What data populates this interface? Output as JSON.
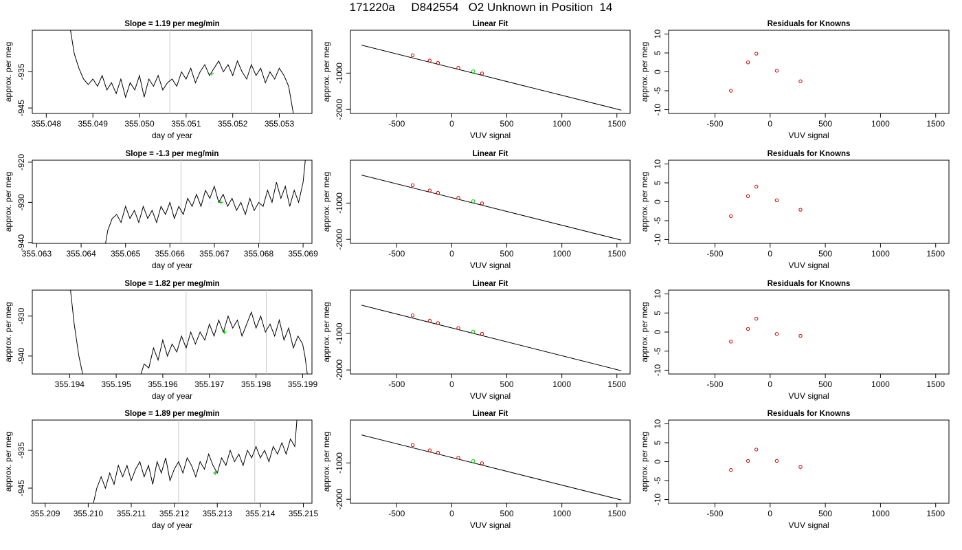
{
  "title": "171220a     D842554   O2 Unknown in Position  14",
  "colors": {
    "line": "#000000",
    "known_points": "#cc0000",
    "unknown_point": "#00cc00",
    "vertical_markers": "#c8c8c8"
  },
  "chart_data": [
    {
      "row": 1,
      "type": "line",
      "title": "Slope =  1.19  per meg/min",
      "xlabel": "day of year",
      "ylabel": "approx. per meg",
      "xlim": [
        355.0477,
        355.0537
      ],
      "ylim": [
        -946.5,
        -923.5
      ],
      "xticks": [
        "355.048",
        "355.049",
        "355.050",
        "355.051",
        "355.052",
        "355.053"
      ],
      "yticks": [
        "-935",
        "-945"
      ],
      "vlines": [
        355.05065,
        355.0524
      ],
      "marker": [
        355.05155,
        -935.5
      ],
      "trace": [
        [
          355.04852,
          -923.5
        ],
        [
          355.0486,
          -930
        ],
        [
          355.0487,
          -934
        ],
        [
          355.0488,
          -937
        ],
        [
          355.0489,
          -938.5
        ],
        [
          355.049,
          -937
        ],
        [
          355.0491,
          -939
        ],
        [
          355.0492,
          -936
        ],
        [
          355.0493,
          -940
        ],
        [
          355.0494,
          -938
        ],
        [
          355.0495,
          -941
        ],
        [
          355.0496,
          -937
        ],
        [
          355.0497,
          -942
        ],
        [
          355.0498,
          -938
        ],
        [
          355.0499,
          -940
        ],
        [
          355.05,
          -936
        ],
        [
          355.0501,
          -942
        ],
        [
          355.0502,
          -937
        ],
        [
          355.0503,
          -939
        ],
        [
          355.0504,
          -936
        ],
        [
          355.0505,
          -940
        ],
        [
          355.0506,
          -938
        ],
        [
          355.0507,
          -937
        ],
        [
          355.0508,
          -939
        ],
        [
          355.0509,
          -935
        ],
        [
          355.051,
          -937
        ],
        [
          355.0511,
          -934
        ],
        [
          355.0512,
          -938
        ],
        [
          355.0513,
          -935
        ],
        [
          355.0514,
          -933
        ],
        [
          355.0515,
          -936
        ],
        [
          355.0516,
          -934
        ],
        [
          355.0517,
          -932
        ],
        [
          355.0518,
          -935
        ],
        [
          355.0519,
          -933
        ],
        [
          355.052,
          -936
        ],
        [
          355.0521,
          -932
        ],
        [
          355.0522,
          -935
        ],
        [
          355.0523,
          -937
        ],
        [
          355.0524,
          -933
        ],
        [
          355.0525,
          -936
        ],
        [
          355.0526,
          -934
        ],
        [
          355.0527,
          -938
        ],
        [
          355.0528,
          -935
        ],
        [
          355.0529,
          -937
        ],
        [
          355.053,
          -934
        ],
        [
          355.0531,
          -936
        ],
        [
          355.0532,
          -939
        ],
        [
          355.0533,
          -946.5
        ]
      ]
    },
    {
      "row": 1,
      "type": "line",
      "title": "Linear Fit",
      "xlabel": "VUV signal",
      "ylabel": "approx. per meg",
      "xlim": [
        -920,
        1620
      ],
      "ylim": [
        -2110,
        180
      ],
      "xticks": [
        "-500",
        "0",
        "500",
        "1000",
        "1500"
      ],
      "yticks": [
        "-1000",
        "-2000"
      ],
      "fit": {
        "x": [
          -820,
          1540
        ],
        "y": [
          -230,
          -2020
        ]
      },
      "knowns": {
        "x": [
          -355,
          -200,
          -125,
          60,
          275
        ],
        "y": [
          -510,
          -655,
          -720,
          -855,
          -1010
        ]
      },
      "unknown": {
        "x": [
          195
        ],
        "y": [
          -950
        ]
      }
    },
    {
      "row": 1,
      "type": "scatter",
      "title": "Residuals for Knowns",
      "xlabel": "VUV signal",
      "ylabel": "approx. per meg",
      "xlim": [
        -920,
        1620
      ],
      "ylim": [
        -11,
        11
      ],
      "xticks": [
        "-500",
        "0",
        "500",
        "1000",
        "1500"
      ],
      "yticks": [
        "10",
        "5",
        "0",
        "-5",
        "-10"
      ],
      "x": [
        -355,
        -200,
        -125,
        60,
        275
      ],
      "y": [
        -5,
        2.5,
        4.8,
        0.3,
        -2.5
      ]
    },
    {
      "row": 2,
      "type": "line",
      "title": "Slope =  -1.3  per meg/min",
      "xlabel": "day of year",
      "ylabel": "approx. per meg",
      "xlim": [
        355.0629,
        355.0692
      ],
      "ylim": [
        -940.2,
        -919.5
      ],
      "xticks": [
        "355.063",
        "355.064",
        "355.065",
        "355.066",
        "355.067",
        "355.068",
        "355.069"
      ],
      "yticks": [
        "-920",
        "-930",
        "-940"
      ],
      "vlines": [
        355.06625,
        355.06802
      ],
      "marker": [
        355.06715,
        -930
      ],
      "trace": [
        [
          355.06455,
          -940.2
        ],
        [
          355.0646,
          -937
        ],
        [
          355.0647,
          -934
        ],
        [
          355.0648,
          -933
        ],
        [
          355.0649,
          -935
        ],
        [
          355.065,
          -931
        ],
        [
          355.0651,
          -934
        ],
        [
          355.0652,
          -932
        ],
        [
          355.0653,
          -935
        ],
        [
          355.0654,
          -931
        ],
        [
          355.0655,
          -934
        ],
        [
          355.0656,
          -932
        ],
        [
          355.0657,
          -935
        ],
        [
          355.0658,
          -931
        ],
        [
          355.0659,
          -933
        ],
        [
          355.066,
          -930
        ],
        [
          355.0661,
          -934
        ],
        [
          355.0662,
          -931
        ],
        [
          355.0663,
          -933
        ],
        [
          355.0664,
          -929
        ],
        [
          355.0665,
          -931
        ],
        [
          355.0666,
          -928
        ],
        [
          355.0667,
          -931
        ],
        [
          355.0668,
          -927
        ],
        [
          355.0669,
          -929
        ],
        [
          355.067,
          -926
        ],
        [
          355.0671,
          -930
        ],
        [
          355.0672,
          -928
        ],
        [
          355.0673,
          -931
        ],
        [
          355.0674,
          -929
        ],
        [
          355.0675,
          -932
        ],
        [
          355.0676,
          -930
        ],
        [
          355.0677,
          -933
        ],
        [
          355.0678,
          -929
        ],
        [
          355.0679,
          -932
        ],
        [
          355.068,
          -930
        ],
        [
          355.0681,
          -931
        ],
        [
          355.0682,
          -927
        ],
        [
          355.0683,
          -930
        ],
        [
          355.0684,
          -925
        ],
        [
          355.0685,
          -929
        ],
        [
          355.0686,
          -926
        ],
        [
          355.0687,
          -931
        ],
        [
          355.0688,
          -927
        ],
        [
          355.0689,
          -930
        ],
        [
          355.069,
          -925
        ],
        [
          355.06905,
          -919.5
        ]
      ]
    },
    {
      "row": 2,
      "type": "line",
      "title": "Linear Fit",
      "xlabel": "VUV signal",
      "ylabel": "approx. per meg",
      "xlim": [
        -920,
        1620
      ],
      "ylim": [
        -2110,
        180
      ],
      "xticks": [
        "-500",
        "0",
        "500",
        "1000",
        "1500"
      ],
      "yticks": [
        "-1000",
        "-2000"
      ],
      "fit": {
        "x": [
          -820,
          1540
        ],
        "y": [
          -230,
          -2020
        ]
      },
      "knowns": {
        "x": [
          -355,
          -200,
          -125,
          60,
          275
        ],
        "y": [
          -510,
          -655,
          -720,
          -855,
          -1010
        ]
      },
      "unknown": {
        "x": [
          195
        ],
        "y": [
          -950
        ]
      }
    },
    {
      "row": 2,
      "type": "scatter",
      "title": "Residuals for Knowns",
      "xlabel": "VUV signal",
      "ylabel": "approx. per meg",
      "xlim": [
        -920,
        1620
      ],
      "ylim": [
        -11,
        11
      ],
      "xticks": [
        "-500",
        "0",
        "500",
        "1000",
        "1500"
      ],
      "yticks": [
        "10",
        "5",
        "0",
        "-5",
        "-10"
      ],
      "x": [
        -355,
        -200,
        -125,
        60,
        275
      ],
      "y": [
        -3.8,
        1.5,
        4,
        0.4,
        -2.1
      ]
    },
    {
      "row": 3,
      "type": "line",
      "title": "Slope =  1.82  per meg/min",
      "xlabel": "day of year",
      "ylabel": "approx. per meg",
      "xlim": [
        355.1932,
        355.1992
      ],
      "ylim": [
        -944.5,
        -923.5
      ],
      "xticks": [
        "355.194",
        "355.195",
        "355.196",
        "355.197",
        "355.198",
        "355.199"
      ],
      "yticks": [
        "-930",
        "-940"
      ],
      "vlines": [
        355.1965,
        355.19822
      ],
      "marker": [
        355.19732,
        -934
      ],
      "trace": [
        [
          355.19402,
          -923.5
        ],
        [
          355.1941,
          -932
        ],
        [
          355.1942,
          -940
        ],
        [
          355.19428,
          -944.5
        ],
        [
          355.19553,
          -944.5
        ],
        [
          355.1956,
          -942
        ],
        [
          355.1957,
          -943
        ],
        [
          355.1958,
          -938
        ],
        [
          355.1959,
          -941
        ],
        [
          355.196,
          -936
        ],
        [
          355.1961,
          -940
        ],
        [
          355.1962,
          -937
        ],
        [
          355.1963,
          -939
        ],
        [
          355.1964,
          -935
        ],
        [
          355.1965,
          -938
        ],
        [
          355.1966,
          -934
        ],
        [
          355.1967,
          -937
        ],
        [
          355.1968,
          -934
        ],
        [
          355.1969,
          -936
        ],
        [
          355.197,
          -932
        ],
        [
          355.1971,
          -935
        ],
        [
          355.1972,
          -931
        ],
        [
          355.1973,
          -934
        ],
        [
          355.1974,
          -930
        ],
        [
          355.1975,
          -933
        ],
        [
          355.1976,
          -931
        ],
        [
          355.1977,
          -935
        ],
        [
          355.1978,
          -932
        ],
        [
          355.1979,
          -929
        ],
        [
          355.198,
          -933
        ],
        [
          355.1981,
          -930
        ],
        [
          355.1982,
          -934
        ],
        [
          355.1983,
          -932
        ],
        [
          355.1984,
          -935
        ],
        [
          355.1985,
          -931
        ],
        [
          355.1986,
          -936
        ],
        [
          355.1987,
          -933
        ],
        [
          355.1988,
          -938
        ],
        [
          355.1989,
          -935
        ],
        [
          355.199,
          -937
        ],
        [
          355.19905,
          -940
        ],
        [
          355.1991,
          -944.5
        ]
      ]
    },
    {
      "row": 3,
      "type": "line",
      "title": "Linear Fit",
      "xlabel": "VUV signal",
      "ylabel": "approx. per meg",
      "xlim": [
        -920,
        1620
      ],
      "ylim": [
        -2110,
        180
      ],
      "xticks": [
        "-500",
        "0",
        "500",
        "1000",
        "1500"
      ],
      "yticks": [
        "-1000",
        "-2000"
      ],
      "fit": {
        "x": [
          -820,
          1540
        ],
        "y": [
          -230,
          -2020
        ]
      },
      "knowns": {
        "x": [
          -355,
          -200,
          -125,
          60,
          275
        ],
        "y": [
          -510,
          -655,
          -720,
          -855,
          -1010
        ]
      },
      "unknown": {
        "x": [
          195
        ],
        "y": [
          -950
        ]
      }
    },
    {
      "row": 3,
      "type": "scatter",
      "title": "Residuals for Knowns",
      "xlabel": "VUV signal",
      "ylabel": "approx. per meg",
      "xlim": [
        -920,
        1620
      ],
      "ylim": [
        -11,
        11
      ],
      "xticks": [
        "-500",
        "0",
        "500",
        "1000",
        "1500"
      ],
      "yticks": [
        "10",
        "5",
        "0",
        "-5",
        "-10"
      ],
      "x": [
        -355,
        -200,
        -125,
        60,
        275
      ],
      "y": [
        -2.5,
        0.8,
        3.5,
        -0.5,
        -1
      ]
    },
    {
      "row": 4,
      "type": "line",
      "title": "Slope =  1.89  per meg/min",
      "xlabel": "day of year",
      "ylabel": "approx. per meg",
      "xlim": [
        355.2087,
        355.2152
      ],
      "ylim": [
        -949,
        -927
      ],
      "xticks": [
        "355.209",
        "355.210",
        "355.211",
        "355.212",
        "355.213",
        "355.214",
        "355.215"
      ],
      "yticks": [
        "-935",
        "-945"
      ],
      "vlines": [
        355.2121,
        355.21387
      ],
      "marker": [
        355.21295,
        -941
      ],
      "trace": [
        [
          355.21012,
          -949
        ],
        [
          355.2102,
          -945
        ],
        [
          355.2103,
          -942
        ],
        [
          355.2104,
          -945
        ],
        [
          355.2105,
          -941
        ],
        [
          355.2106,
          -944
        ],
        [
          355.2107,
          -939
        ],
        [
          355.2108,
          -942
        ],
        [
          355.2109,
          -939
        ],
        [
          355.211,
          -943
        ],
        [
          355.2111,
          -940
        ],
        [
          355.2112,
          -938
        ],
        [
          355.2113,
          -942
        ],
        [
          355.2114,
          -939
        ],
        [
          355.2115,
          -944
        ],
        [
          355.2116,
          -938
        ],
        [
          355.2117,
          -941
        ],
        [
          355.2118,
          -937
        ],
        [
          355.2119,
          -943
        ],
        [
          355.212,
          -940
        ],
        [
          355.2121,
          -938
        ],
        [
          355.2122,
          -941
        ],
        [
          355.2123,
          -937
        ],
        [
          355.2124,
          -939
        ],
        [
          355.2125,
          -942
        ],
        [
          355.2126,
          -938
        ],
        [
          355.2127,
          -940
        ],
        [
          355.2128,
          -936
        ],
        [
          355.2129,
          -939
        ],
        [
          355.213,
          -941
        ],
        [
          355.2131,
          -937
        ],
        [
          355.2132,
          -939
        ],
        [
          355.2133,
          -935
        ],
        [
          355.2134,
          -938
        ],
        [
          355.2135,
          -936
        ],
        [
          355.2136,
          -939
        ],
        [
          355.2137,
          -935
        ],
        [
          355.2138,
          -937
        ],
        [
          355.2139,
          -934
        ],
        [
          355.214,
          -937
        ],
        [
          355.2141,
          -935
        ],
        [
          355.2142,
          -938
        ],
        [
          355.2143,
          -934
        ],
        [
          355.2144,
          -936
        ],
        [
          355.2145,
          -933
        ],
        [
          355.2146,
          -936
        ],
        [
          355.2147,
          -932
        ],
        [
          355.2148,
          -934
        ],
        [
          355.21485,
          -927
        ]
      ]
    },
    {
      "row": 4,
      "type": "line",
      "title": "Linear Fit",
      "xlabel": "VUV signal",
      "ylabel": "approx. per meg",
      "xlim": [
        -920,
        1620
      ],
      "ylim": [
        -2110,
        180
      ],
      "xticks": [
        "-500",
        "0",
        "500",
        "1000",
        "1500"
      ],
      "yticks": [
        "-1000",
        "-2000"
      ],
      "fit": {
        "x": [
          -820,
          1540
        ],
        "y": [
          -230,
          -2020
        ]
      },
      "knowns": {
        "x": [
          -355,
          -200,
          -125,
          60,
          275
        ],
        "y": [
          -510,
          -655,
          -720,
          -855,
          -1010
        ]
      },
      "unknown": {
        "x": [
          195
        ],
        "y": [
          -950
        ]
      }
    },
    {
      "row": 4,
      "type": "scatter",
      "title": "Residuals for Knowns",
      "xlabel": "VUV signal",
      "ylabel": "approx. per meg",
      "xlim": [
        -920,
        1620
      ],
      "ylim": [
        -11,
        11
      ],
      "xticks": [
        "-500",
        "0",
        "500",
        "1000",
        "1500"
      ],
      "yticks": [
        "10",
        "5",
        "0",
        "-5",
        "-10"
      ],
      "x": [
        -355,
        -200,
        -125,
        60,
        275
      ],
      "y": [
        -2.2,
        0.2,
        3.2,
        0.2,
        -1.4
      ]
    }
  ]
}
